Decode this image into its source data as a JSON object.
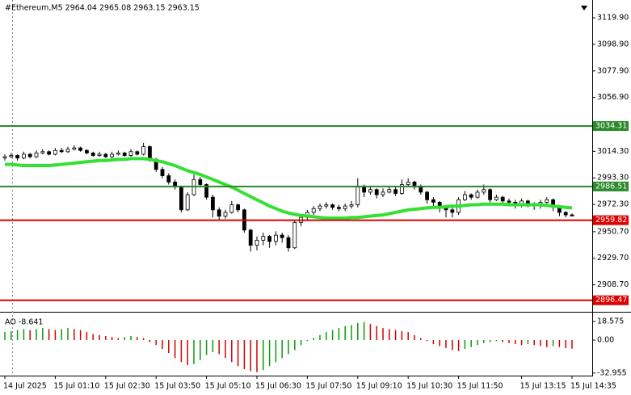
{
  "chart_data": {
    "type": "candlestick",
    "title": "#Ethereum,M5  2964.04 2965.08 2963.15 2963.15",
    "candle_color": "#000000",
    "categories": [
      "14 Jul 2025",
      null,
      null,
      null,
      null,
      null,
      null,
      null,
      "15 Jul 01:10",
      null,
      null,
      null,
      null,
      null,
      null,
      null,
      "15 Jul 02:30",
      null,
      null,
      null,
      null,
      null,
      null,
      null,
      "15 Jul 03:50",
      null,
      null,
      null,
      null,
      null,
      null,
      null,
      "15 Jul 05:10",
      null,
      null,
      null,
      null,
      null,
      null,
      null,
      "15 Jul 06:30",
      null,
      null,
      null,
      null,
      null,
      null,
      null,
      "15 Jul 07:50",
      null,
      null,
      null,
      null,
      null,
      null,
      null,
      "15 Jul 09:10",
      null,
      null,
      null,
      null,
      null,
      null,
      null,
      "15 Jul 10:30",
      null,
      null,
      null,
      null,
      null,
      null,
      null,
      "15 Jul 11:50",
      null,
      null,
      null,
      null,
      null,
      null,
      null,
      null,
      null,
      "15 Jul 13:15",
      null,
      null,
      null,
      null,
      null,
      null,
      null,
      "15 Jul 14:35"
    ],
    "open": [
      3009,
      3010,
      3011,
      3009,
      3012,
      3010,
      3013,
      3014,
      3012,
      3015,
      3014,
      3016,
      3017,
      3015,
      3013,
      3011,
      3012,
      3010,
      3012,
      3013,
      3011,
      3014,
      3012,
      3018,
      3008,
      3000,
      2995,
      2990,
      2986,
      2968,
      2980,
      2992,
      2988,
      2978,
      2968,
      2963,
      2966,
      2972,
      2968,
      2952,
      2940,
      2944,
      2947,
      2943,
      2948,
      2946,
      2938,
      2958,
      2962,
      2966,
      2969,
      2971,
      2972,
      2970,
      2969,
      2971,
      2972,
      2986,
      2982,
      2984,
      2980,
      2982,
      2984,
      2981,
      2988,
      2990,
      2986,
      2982,
      2976,
      2974,
      2970,
      2968,
      2966,
      2976,
      2980,
      2978,
      2982,
      2984,
      2976,
      2978,
      2975,
      2974,
      2972,
      2975,
      2973,
      2971,
      2974,
      2976,
      2970,
      2966,
      2964.04
    ],
    "high": [
      3012,
      3013,
      3012,
      3014,
      3013,
      3015,
      3016,
      3015,
      3017,
      3017,
      3018,
      3019,
      3018,
      3016,
      3014,
      3014,
      3013,
      3014,
      3015,
      3014,
      3016,
      3015,
      3021,
      3019,
      3009,
      3002,
      2997,
      2992,
      2987,
      2982,
      2996,
      2994,
      2989,
      2980,
      2970,
      2968,
      2975,
      2973,
      2969,
      2953,
      2947,
      2950,
      2948,
      2951,
      2950,
      2948,
      2960,
      2964,
      2968,
      2971,
      2973,
      2974,
      2973,
      2972,
      2973,
      2975,
      2993,
      2988,
      2987,
      2985,
      2985,
      2987,
      2986,
      2992,
      2993,
      2991,
      2988,
      2983,
      2978,
      2975,
      2972,
      2970,
      2978,
      2983,
      2981,
      2984,
      2988,
      2985,
      2980,
      2979,
      2977,
      2976,
      2977,
      2976,
      2974,
      2976,
      2978,
      2977,
      2971,
      2967,
      2965.08
    ],
    "low": [
      3007,
      3009,
      3007,
      3008,
      3009,
      3009,
      3012,
      3011,
      3011,
      3013,
      3013,
      3015,
      3014,
      3012,
      3010,
      3010,
      3009,
      3009,
      3011,
      3010,
      3010,
      3011,
      3011,
      3006,
      2998,
      2993,
      2988,
      2984,
      2966,
      2967,
      2979,
      2986,
      2976,
      2962,
      2960,
      2961,
      2965,
      2966,
      2950,
      2935,
      2936,
      2940,
      2938,
      2940,
      2942,
      2935,
      2937,
      2955,
      2960,
      2964,
      2967,
      2969,
      2968,
      2967,
      2967,
      2969,
      2970,
      2978,
      2980,
      2977,
      2978,
      2981,
      2979,
      2980,
      2987,
      2984,
      2980,
      2973,
      2971,
      2966,
      2962,
      2962,
      2964,
      2975,
      2976,
      2977,
      2980,
      2974,
      2975,
      2972,
      2971,
      2969,
      2970,
      2970,
      2968,
      2969,
      2973,
      2967,
      2963,
      2962,
      2963.15
    ],
    "close": [
      3010,
      3011,
      3009,
      3012,
      3010,
      3013,
      3014,
      3012,
      3015,
      3014,
      3016,
      3017,
      3015,
      3013,
      3011,
      3012,
      3010,
      3012,
      3013,
      3011,
      3014,
      3012,
      3018,
      3008,
      3000,
      2995,
      2990,
      2986,
      2968,
      2980,
      2992,
      2988,
      2978,
      2968,
      2963,
      2966,
      2972,
      2968,
      2952,
      2940,
      2944,
      2947,
      2943,
      2948,
      2946,
      2938,
      2958,
      2962,
      2966,
      2969,
      2971,
      2972,
      2970,
      2969,
      2971,
      2972,
      2986,
      2982,
      2984,
      2980,
      2982,
      2984,
      2981,
      2988,
      2990,
      2986,
      2982,
      2976,
      2974,
      2970,
      2968,
      2966,
      2976,
      2980,
      2978,
      2982,
      2984,
      2976,
      2978,
      2975,
      2974,
      2972,
      2975,
      2973,
      2971,
      2974,
      2976,
      2970,
      2966,
      2964,
      2963.15
    ],
    "ma": {
      "color": "#33e033",
      "values": [
        3004,
        3004,
        3003.5,
        3003,
        3003,
        3003,
        3003,
        3003,
        3003.5,
        3004,
        3004.5,
        3005,
        3005.5,
        3006,
        3006.5,
        3007,
        3007,
        3007.5,
        3008,
        3008,
        3008.5,
        3008.5,
        3008.5,
        3008,
        3007,
        3006,
        3004.5,
        3003,
        3001,
        2999,
        2997.5,
        2996,
        2994,
        2992,
        2990,
        2988,
        2986,
        2983.5,
        2981,
        2978.5,
        2976,
        2973.5,
        2971,
        2969,
        2967,
        2965.5,
        2964.5,
        2963.5,
        2963,
        2962.5,
        2962,
        2961.5,
        2961.5,
        2961.5,
        2961.5,
        2962,
        2962,
        2962.5,
        2963,
        2963.5,
        2964,
        2965,
        2966,
        2967,
        2968,
        2968.5,
        2969,
        2969.5,
        2970,
        2970,
        2970.5,
        2971,
        2971,
        2971.5,
        2972,
        2972,
        2972.5,
        2972.5,
        2972.5,
        2972.5,
        2972,
        2972,
        2972,
        2972,
        2972,
        2972,
        2971.5,
        2971,
        2970.5,
        2970,
        2969.5
      ]
    },
    "ylim": [
      2888,
      3134
    ],
    "yticks": [
      {
        "value": 3119.9,
        "label": "3119.90"
      },
      {
        "value": 3098.9,
        "label": "3098.90"
      },
      {
        "value": 3077.9,
        "label": "3077.90"
      },
      {
        "value": 3056.9,
        "label": "3056.90"
      },
      {
        "value": 3014.3,
        "label": "3014.30"
      },
      {
        "value": 2993.3,
        "label": "2993.30"
      },
      {
        "value": 2972.3,
        "label": "2972.30"
      },
      {
        "value": 2950.7,
        "label": "2950.70"
      },
      {
        "value": 2929.7,
        "label": "2929.70"
      },
      {
        "value": 2908.7,
        "label": "2908.70"
      }
    ],
    "levels": [
      {
        "value": 3034.31,
        "label": "3034.31",
        "color": "#2a8a2a"
      },
      {
        "value": 2986.51,
        "label": "2986.51",
        "color": "#2a8a2a"
      },
      {
        "value": 2959.82,
        "label": "2959.82",
        "color": "#e00000"
      },
      {
        "value": 2896.47,
        "label": "2896.47",
        "color": "#e00000"
      }
    ],
    "indicator": {
      "title": "AO -8.641",
      "up_color": "#0a9a0a",
      "down_color": "#d00000",
      "values": [
        8,
        9,
        10,
        11,
        10,
        11,
        12,
        11,
        10,
        11,
        12,
        11,
        10,
        8,
        6,
        5,
        4,
        3,
        2,
        3,
        4,
        3,
        2,
        -2,
        -5,
        -9,
        -13,
        -18,
        -22,
        -25,
        -24,
        -20,
        -15,
        -12,
        -14,
        -18,
        -22,
        -26,
        -29,
        -31,
        -32,
        -30,
        -26,
        -22,
        -18,
        -14,
        -10,
        -5,
        -1,
        2,
        5,
        8,
        10,
        12,
        14,
        15,
        17,
        18,
        16,
        14,
        12,
        11,
        10,
        9,
        8,
        5,
        2,
        -1,
        -4,
        -6,
        -8,
        -10,
        -11,
        -9,
        -7,
        -5,
        -3,
        -2,
        -1,
        -2,
        -3,
        -4,
        -5,
        -4,
        -5,
        -6,
        -7,
        -6,
        -7,
        -8,
        -8.641
      ],
      "ylim": [
        -35.5,
        25
      ],
      "yticks": [
        {
          "value": 18.575,
          "label": "18.575"
        },
        {
          "value": 0,
          "label": "0.00"
        },
        {
          "value": -32.955,
          "label": "-32.955"
        }
      ]
    }
  }
}
